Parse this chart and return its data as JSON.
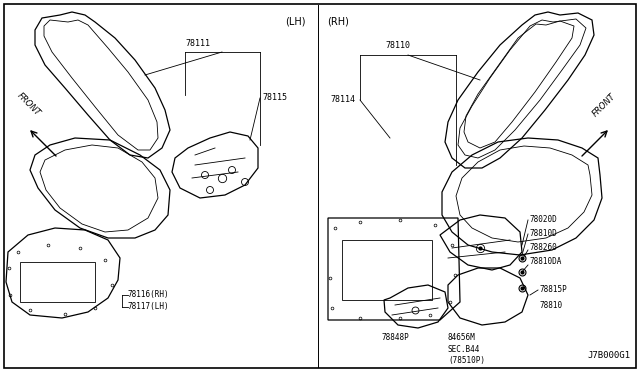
{
  "background_color": "#ffffff",
  "border_color": "#000000",
  "diagram_id": "J7B000G1",
  "lh_label": "(LH)",
  "rh_label": "(RH)",
  "figsize": [
    6.4,
    3.72
  ],
  "dpi": 100
}
